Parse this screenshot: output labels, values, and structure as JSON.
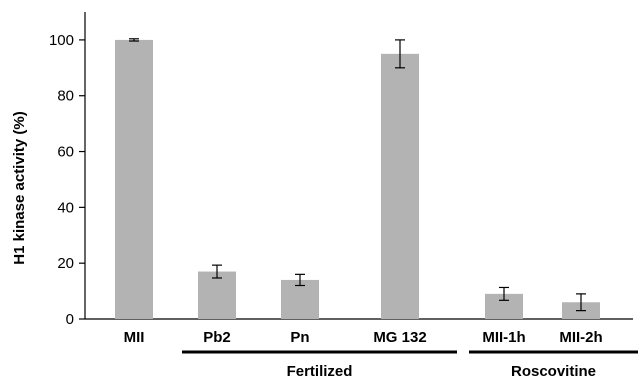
{
  "chart_data": {
    "type": "bar",
    "title": "",
    "xlabel": "",
    "ylabel": "H1 kinase activity (%)",
    "ylim": [
      0,
      110
    ],
    "yticks": [
      0,
      20,
      40,
      60,
      80,
      100
    ],
    "categories": [
      "MII",
      "Pb2",
      "Pn",
      "MG 132",
      "MII-1h",
      "MII-2h"
    ],
    "values": [
      100,
      17,
      14,
      95,
      9,
      6
    ],
    "errors": [
      0.4,
      2.3,
      2.0,
      5.0,
      2.3,
      3.0
    ],
    "groups": [
      {
        "label": "Fertilized",
        "categories": [
          "Pb2",
          "Pn",
          "MG 132"
        ]
      },
      {
        "label": "Roscovitine",
        "categories": [
          "MII-1h",
          "MII-2h"
        ]
      }
    ],
    "bar_color": "#b3b3b3",
    "grid": false,
    "legend": "none"
  }
}
